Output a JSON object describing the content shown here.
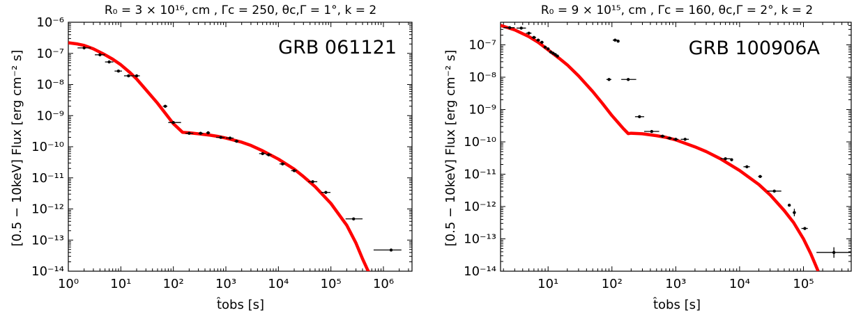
{
  "chart_data": [
    {
      "type": "scatter",
      "title": "R₀ = 3 × 10¹⁶, cm , Γc = 250, θc,Γ = 1°, k = 2",
      "annotation": "GRB 061121",
      "xlabel": "t̂obs [s]",
      "ylabel": "[0.5 − 10keV] Flux [erg cm⁻² s]",
      "x_scale": "log",
      "y_scale": "log",
      "xlim": [
        1,
        3500000
      ],
      "ylim": [
        1e-14,
        1e-06
      ],
      "x_ticks": [
        "10⁰",
        "10¹",
        "10²",
        "10³",
        "10⁴",
        "10⁵",
        "10⁶"
      ],
      "y_ticks": [
        "10⁻¹⁴",
        "10⁻¹³",
        "10⁻¹²",
        "10⁻¹¹",
        "10⁻¹⁰",
        "10⁻⁹",
        "10⁻⁸",
        "10⁻⁷",
        "10⁻⁶"
      ],
      "grid": false,
      "colors": {
        "data": "#000000",
        "model": "#ff0000"
      },
      "series": [
        {
          "kind": "points",
          "points": [
            {
              "x": 2.0,
              "y": 1.5e-07,
              "xerr": [
                1.5,
                2.7
              ]
            },
            {
              "x": 4.0,
              "y": 9e-08,
              "xerr": [
                3.2,
                5.0
              ]
            },
            {
              "x": 6.0,
              "y": 5.3e-08,
              "xerr": [
                5.0,
                7.2
              ]
            },
            {
              "x": 9.0,
              "y": 2.7e-08,
              "xerr": [
                7.6,
                10.5
              ]
            },
            {
              "x": 14.0,
              "y": 1.9e-08,
              "xerr": [
                11.5,
                17.0
              ]
            },
            {
              "x": 20.0,
              "y": 1.9e-08,
              "xerr": [
                17.0,
                23.0
              ]
            },
            {
              "x": 70.0,
              "y": 2e-09,
              "xerr": [
                63.0,
                77.0
              ]
            },
            {
              "x": 100.0,
              "y": 6e-10,
              "xerr": [
                80.0,
                140.0
              ]
            },
            {
              "x": 200.0,
              "y": 2.7e-10,
              "xerr": [
                170.0,
                240.0
              ]
            },
            {
              "x": 330.0,
              "y": 2.7e-10,
              "xerr": [
                300.0,
                370.0
              ]
            },
            {
              "x": 460.0,
              "y": 2.8e-10,
              "xerr": [
                420.0,
                500.0
              ]
            },
            {
              "x": 800.0,
              "y": 2e-10,
              "xerr": [
                650.0,
                950.0
              ]
            },
            {
              "x": 1200.0,
              "y": 1.9e-10,
              "xerr": [
                1000.0,
                1400.0
              ]
            },
            {
              "x": 1600.0,
              "y": 1.5e-10,
              "xerr": [
                1450.0,
                1750.0
              ]
            },
            {
              "x": 5000.0,
              "y": 6e-11,
              "xerr": [
                4300.0,
                5800.0
              ]
            },
            {
              "x": 6500.0,
              "y": 5.5e-11,
              "xerr": [
                5800.0,
                7400.0
              ]
            },
            {
              "x": 12000.0,
              "y": 2.8e-11,
              "xerr": [
                10500.0,
                13500.0
              ]
            },
            {
              "x": 20000.0,
              "y": 1.7e-11,
              "xerr": [
                17500.0,
                22500.0
              ]
            },
            {
              "x": 45000.0,
              "y": 7.5e-12,
              "xerr": [
                37000.0,
                55000.0
              ]
            },
            {
              "x": 80000.0,
              "y": 3.4e-12,
              "xerr": [
                65000.0,
                98000.0
              ]
            },
            {
              "x": 270000.0,
              "y": 4.8e-13,
              "xerr": [
                190000.0,
                400000.0
              ]
            },
            {
              "x": 1400000.0,
              "y": 4.8e-14,
              "xerr": [
                650000.0,
                2200000.0
              ]
            }
          ]
        },
        {
          "kind": "model",
          "x": [
            1,
            1.5,
            2,
            3,
            5,
            7,
            10,
            15,
            20,
            30,
            50,
            70,
            100,
            150,
            200,
            300,
            500,
            700,
            1000,
            2000,
            3000,
            5000,
            10000,
            20000,
            30000,
            50000,
            100000,
            200000,
            300000,
            400000,
            500000,
            560000
          ],
          "y": [
            2.2e-07,
            2e-07,
            1.8e-07,
            1.4e-07,
            9e-08,
            6.5e-08,
            4.3e-08,
            2.4e-08,
            1.5e-08,
            6.8e-09,
            2.5e-09,
            1.2e-09,
            5.5e-10,
            2.9e-10,
            2.8e-10,
            2.6e-10,
            2.35e-10,
            2.15e-10,
            1.9e-10,
            1.4e-10,
            1.1e-10,
            7.4e-11,
            4e-11,
            1.9e-11,
            1.1e-11,
            5.2e-12,
            1.5e-12,
            3e-13,
            8e-14,
            2.5e-14,
            1.1e-14,
            8e-15
          ]
        }
      ]
    },
    {
      "type": "scatter",
      "title": "R₀ = 9 × 10¹⁵, cm , Γc = 160, θc,Γ = 2°, k = 2",
      "annotation": "GRB 100906A",
      "xlabel": "t̂obs [s]",
      "ylabel": "[0.5 − 10keV] Flux [erg cm⁻² s]",
      "x_scale": "log",
      "y_scale": "log",
      "xlim": [
        1.8,
        560000
      ],
      "ylim": [
        1e-14,
        5e-07
      ],
      "x_ticks": [
        "10¹",
        "10²",
        "10³",
        "10⁴",
        "10⁵"
      ],
      "y_ticks": [
        "10⁻¹⁴",
        "10⁻¹³",
        "10⁻¹²",
        "10⁻¹¹",
        "10⁻¹⁰",
        "10⁻⁹",
        "10⁻⁸",
        "10⁻⁷"
      ],
      "grid": false,
      "colors": {
        "data": "#000000",
        "model": "#ff0000"
      },
      "series": [
        {
          "kind": "points",
          "points": [
            {
              "x": 2.5,
              "y": 3.4e-07,
              "xerr": [
                2.0,
                3.0
              ]
            },
            {
              "x": 3.8,
              "y": 3.3e-07,
              "xerr": [
                3.2,
                4.5
              ]
            },
            {
              "x": 5.0,
              "y": 2.3e-07,
              "xerr": [
                4.5,
                5.5
              ]
            },
            {
              "x": 6.0,
              "y": 1.7e-07,
              "xerr": [
                5.5,
                6.5
              ]
            },
            {
              "x": 7.0,
              "y": 1.4e-07,
              "xerr": [
                6.5,
                7.5
              ]
            },
            {
              "x": 8.0,
              "y": 1.2e-07,
              "xerr": [
                7.5,
                8.5
              ]
            },
            {
              "x": 9.0,
              "y": 8.5e-08,
              "xerr": [
                8.5,
                9.5
              ]
            },
            {
              "x": 10.0,
              "y": 7.5e-08,
              "xerr": [
                9.6,
                10.4
              ]
            },
            {
              "x": 11.0,
              "y": 6e-08,
              "xerr": [
                10.6,
                11.4
              ]
            },
            {
              "x": 12.0,
              "y": 5.5e-08,
              "xerr": [
                11.6,
                12.4
              ]
            },
            {
              "x": 13.0,
              "y": 5e-08,
              "xerr": [
                12.6,
                13.4
              ]
            },
            {
              "x": 14.0,
              "y": 4.5e-08,
              "xerr": [
                13.5,
                14.5
              ]
            },
            {
              "x": 90.0,
              "y": 8.5e-09,
              "xerr": [
                82.0,
                98.0
              ]
            },
            {
              "x": 112.0,
              "y": 1.4e-07,
              "xerr": [
                103.0,
                122.0
              ]
            },
            {
              "x": 125.0,
              "y": 1.3e-07,
              "xerr": [
                120.0,
                130.0
              ]
            },
            {
              "x": 180.0,
              "y": 8.5e-09,
              "xerr": [
                140.0,
                240.0
              ]
            },
            {
              "x": 270.0,
              "y": 6e-10,
              "xerr": [
                230.0,
                320.0
              ]
            },
            {
              "x": 420.0,
              "y": 2.1e-10,
              "xerr": [
                320.0,
                550.0
              ]
            },
            {
              "x": 620.0,
              "y": 1.5e-10,
              "xerr": [
                560.0,
                680.0
              ]
            },
            {
              "x": 800.0,
              "y": 1.3e-10,
              "xerr": [
                720.0,
                880.0
              ]
            },
            {
              "x": 1000.0,
              "y": 1.2e-10,
              "xerr": [
                900.0,
                1100.0
              ]
            },
            {
              "x": 1400.0,
              "y": 1.2e-10,
              "xerr": [
                1200.0,
                1600.0
              ]
            },
            {
              "x": 6000.0,
              "y": 3e-11,
              "xerr": [
                5000.0,
                7200.0
              ]
            },
            {
              "x": 7500.0,
              "y": 2.8e-11,
              "xerr": [
                7200.0,
                7800.0
              ]
            },
            {
              "x": 13000.0,
              "y": 1.7e-11,
              "xerr": [
                11500.0,
                14500.0
              ]
            },
            {
              "x": 21000.0,
              "y": 8.5e-12,
              "xerr": [
                19500.0,
                22500.0
              ]
            },
            {
              "x": 35000.0,
              "y": 3e-12,
              "xerr": [
                27000.0,
                45000.0
              ]
            },
            {
              "x": 60000.0,
              "y": 1.1e-12,
              "xerr": [
                57000.0,
                63000.0
              ]
            },
            {
              "x": 72000.0,
              "y": 6.5e-13,
              "xerr": [
                68000.0,
                76000.0
              ],
              "yerr": [
                5e-13,
                8.5e-13
              ]
            },
            {
              "x": 105000.0,
              "y": 2.1e-13,
              "xerr": [
                93000.0,
                117000.0
              ]
            },
            {
              "x": 300000.0,
              "y": 3.8e-14,
              "xerr": [
                160000.0,
                550000.0
              ],
              "yerr": [
                2.6e-14,
                5.5e-14
              ]
            }
          ]
        },
        {
          "kind": "model",
          "x": [
            1.8,
            3,
            5,
            7,
            10,
            15,
            20,
            30,
            50,
            70,
            100,
            150,
            180,
            200,
            300,
            500,
            700,
            1000,
            2000,
            3000,
            5000,
            10000,
            20000,
            30000,
            50000,
            70000,
            100000,
            130000,
            150000,
            170000
          ],
          "y": [
            4e-07,
            2.9e-07,
            1.8e-07,
            1.2e-07,
            7e-08,
            3.8e-08,
            2.4e-08,
            1.1e-08,
            3.6e-09,
            1.6e-09,
            6.5e-10,
            2.6e-10,
            1.8e-10,
            1.85e-10,
            1.78e-10,
            1.55e-10,
            1.38e-10,
            1.15e-10,
            7e-11,
            5e-11,
            3e-11,
            1.3e-11,
            4.8e-12,
            2.3e-12,
            7.5e-13,
            3.2e-13,
            1e-13,
            3.5e-14,
            1.8e-14,
            1e-14
          ]
        }
      ]
    }
  ]
}
